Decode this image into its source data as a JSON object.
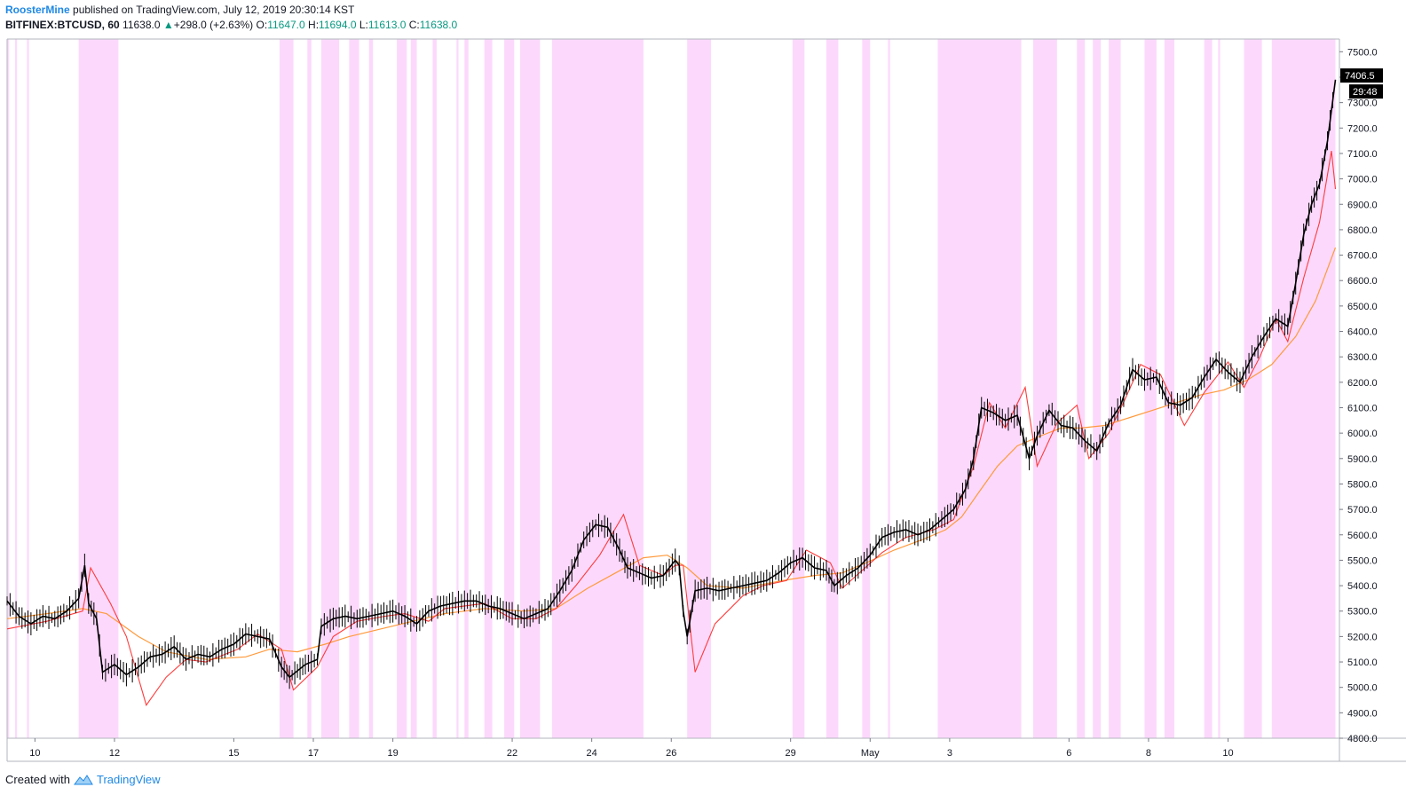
{
  "header": {
    "author": "RoosterMine",
    "published": "published on TradingView.com, July 12, 2019 20:30:14 KST",
    "symbol": "BITFINEX:BTCUSD, 60",
    "last": "11638.0",
    "change": "+298.0 (+2.63%)",
    "o_label": "O:",
    "o_value": "11647.0",
    "h_label": "H:",
    "h_value": "11694.0",
    "l_label": "L:",
    "l_value": "11613.0",
    "c_label": "C:",
    "c_value": "11638.0"
  },
  "price_tag": {
    "value": "7406.5",
    "countdown": "29:48"
  },
  "footer": {
    "created_with": "Created with",
    "brand": "TradingView"
  },
  "colors": {
    "candle": "#000000",
    "ema_fast": "#ff3b3b",
    "ema_slow": "#ff9a3c",
    "band": "#fcd9fc",
    "tag_bg": "#000000"
  },
  "chart_data": {
    "type": "line",
    "title": "",
    "xlabel": "",
    "ylabel": "",
    "ylim": [
      4800,
      7550
    ],
    "yticks": [
      7500,
      7400,
      7300,
      7200,
      7100,
      7000,
      6900,
      6800,
      6700,
      6600,
      6500,
      6400,
      6300,
      6200,
      6100,
      6000,
      5900,
      5800,
      5700,
      5600,
      5500,
      5400,
      5300,
      5200,
      5100,
      5000,
      4900,
      4800
    ],
    "ytick_labels": [
      "7500.0",
      "7400.0",
      "7300.0",
      "7200.0",
      "7100.0",
      "7000.0",
      "6900.0",
      "6800.0",
      "6700.0",
      "6600.0",
      "6500.0",
      "6400.0",
      "6300.0",
      "6200.0",
      "6100.0",
      "6000.0",
      "5900.0",
      "5800.0",
      "5700.0",
      "5600.0",
      "5500.0",
      "5400.0",
      "5300.0",
      "5200.0",
      "5100.0",
      "5000.0",
      "4900.0",
      "4800.0"
    ],
    "xlim": [
      0,
      33.5
    ],
    "xticks": [
      {
        "day": 0.7,
        "label": "10"
      },
      {
        "day": 2.7,
        "label": "12"
      },
      {
        "day": 5.7,
        "label": "15"
      },
      {
        "day": 7.7,
        "label": "17"
      },
      {
        "day": 9.7,
        "label": "19"
      },
      {
        "day": 12.7,
        "label": "22"
      },
      {
        "day": 14.7,
        "label": "24"
      },
      {
        "day": 16.7,
        "label": "26"
      },
      {
        "day": 19.7,
        "label": "29"
      },
      {
        "day": 21.7,
        "label": "May"
      },
      {
        "day": 23.7,
        "label": "3"
      },
      {
        "day": 26.7,
        "label": "6"
      },
      {
        "day": 28.7,
        "label": "8"
      },
      {
        "day": 30.7,
        "label": "10"
      }
    ],
    "price_series": {
      "name": "BITFINEX:BTCUSD",
      "points": [
        [
          0.0,
          5340
        ],
        [
          0.3,
          5280
        ],
        [
          0.6,
          5250
        ],
        [
          0.9,
          5280
        ],
        [
          1.2,
          5270
        ],
        [
          1.5,
          5300
        ],
        [
          1.8,
          5350
        ],
        [
          1.95,
          5480
        ],
        [
          2.05,
          5330
        ],
        [
          2.25,
          5270
        ],
        [
          2.4,
          5060
        ],
        [
          2.7,
          5090
        ],
        [
          3.0,
          5050
        ],
        [
          3.3,
          5080
        ],
        [
          3.6,
          5120
        ],
        [
          3.9,
          5130
        ],
        [
          4.2,
          5160
        ],
        [
          4.5,
          5110
        ],
        [
          4.8,
          5130
        ],
        [
          5.1,
          5120
        ],
        [
          5.4,
          5150
        ],
        [
          5.7,
          5170
        ],
        [
          6.0,
          5210
        ],
        [
          6.3,
          5200
        ],
        [
          6.6,
          5190
        ],
        [
          6.9,
          5080
        ],
        [
          7.1,
          5040
        ],
        [
          7.5,
          5090
        ],
        [
          7.8,
          5110
        ],
        [
          7.9,
          5240
        ],
        [
          8.2,
          5270
        ],
        [
          8.5,
          5280
        ],
        [
          8.8,
          5270
        ],
        [
          9.1,
          5280
        ],
        [
          9.4,
          5290
        ],
        [
          9.7,
          5300
        ],
        [
          10.0,
          5280
        ],
        [
          10.3,
          5250
        ],
        [
          10.6,
          5300
        ],
        [
          10.9,
          5320
        ],
        [
          11.2,
          5330
        ],
        [
          11.5,
          5340
        ],
        [
          11.8,
          5340
        ],
        [
          12.1,
          5320
        ],
        [
          12.4,
          5310
        ],
        [
          12.7,
          5290
        ],
        [
          13.0,
          5270
        ],
        [
          13.3,
          5290
        ],
        [
          13.6,
          5310
        ],
        [
          13.9,
          5380
        ],
        [
          14.2,
          5460
        ],
        [
          14.5,
          5580
        ],
        [
          14.8,
          5640
        ],
        [
          15.1,
          5630
        ],
        [
          15.4,
          5540
        ],
        [
          15.6,
          5470
        ],
        [
          15.9,
          5450
        ],
        [
          16.2,
          5430
        ],
        [
          16.5,
          5440
        ],
        [
          16.8,
          5500
        ],
        [
          16.9,
          5480
        ],
        [
          17.0,
          5300
        ],
        [
          17.1,
          5200
        ],
        [
          17.3,
          5380
        ],
        [
          17.6,
          5390
        ],
        [
          17.9,
          5380
        ],
        [
          18.2,
          5390
        ],
        [
          18.5,
          5400
        ],
        [
          18.8,
          5410
        ],
        [
          19.1,
          5420
        ],
        [
          19.4,
          5450
        ],
        [
          19.7,
          5490
        ],
        [
          20.0,
          5510
        ],
        [
          20.3,
          5470
        ],
        [
          20.6,
          5460
        ],
        [
          20.8,
          5400
        ],
        [
          21.1,
          5440
        ],
        [
          21.4,
          5470
        ],
        [
          21.7,
          5520
        ],
        [
          22.0,
          5590
        ],
        [
          22.3,
          5610
        ],
        [
          22.6,
          5620
        ],
        [
          22.9,
          5600
        ],
        [
          23.2,
          5620
        ],
        [
          23.5,
          5660
        ],
        [
          23.8,
          5700
        ],
        [
          24.1,
          5780
        ],
        [
          24.3,
          5900
        ],
        [
          24.5,
          6100
        ],
        [
          24.8,
          6080
        ],
        [
          25.1,
          6050
        ],
        [
          25.4,
          6070
        ],
        [
          25.7,
          5900
        ],
        [
          25.9,
          5990
        ],
        [
          26.2,
          6090
        ],
        [
          26.5,
          6030
        ],
        [
          26.8,
          6020
        ],
        [
          27.1,
          5970
        ],
        [
          27.4,
          5930
        ],
        [
          27.7,
          6040
        ],
        [
          28.0,
          6110
        ],
        [
          28.3,
          6250
        ],
        [
          28.6,
          6210
        ],
        [
          28.9,
          6220
        ],
        [
          29.2,
          6120
        ],
        [
          29.5,
          6110
        ],
        [
          29.8,
          6140
        ],
        [
          30.1,
          6220
        ],
        [
          30.4,
          6290
        ],
        [
          30.7,
          6240
        ],
        [
          31.0,
          6200
        ],
        [
          31.3,
          6300
        ],
        [
          31.6,
          6380
        ],
        [
          31.9,
          6450
        ],
        [
          32.2,
          6420
        ],
        [
          32.4,
          6590
        ],
        [
          32.6,
          6780
        ],
        [
          32.8,
          6900
        ],
        [
          33.0,
          6980
        ],
        [
          33.2,
          7150
        ],
        [
          33.4,
          7390
        ]
      ]
    },
    "ema_fast": {
      "points": [
        [
          0.0,
          5230
        ],
        [
          1.0,
          5260
        ],
        [
          1.9,
          5300
        ],
        [
          2.1,
          5470
        ],
        [
          2.6,
          5330
        ],
        [
          3.0,
          5200
        ],
        [
          3.5,
          4930
        ],
        [
          4.0,
          5040
        ],
        [
          4.5,
          5110
        ],
        [
          5.0,
          5100
        ],
        [
          5.8,
          5150
        ],
        [
          6.3,
          5210
        ],
        [
          6.9,
          5150
        ],
        [
          7.2,
          4990
        ],
        [
          7.8,
          5080
        ],
        [
          8.2,
          5200
        ],
        [
          8.8,
          5260
        ],
        [
          9.5,
          5280
        ],
        [
          10.0,
          5290
        ],
        [
          10.6,
          5260
        ],
        [
          11.0,
          5310
        ],
        [
          12.0,
          5330
        ],
        [
          12.7,
          5270
        ],
        [
          13.3,
          5270
        ],
        [
          13.8,
          5310
        ],
        [
          14.3,
          5400
        ],
        [
          14.9,
          5520
        ],
        [
          15.5,
          5680
        ],
        [
          15.9,
          5480
        ],
        [
          16.5,
          5440
        ],
        [
          16.8,
          5480
        ],
        [
          17.0,
          5480
        ],
        [
          17.3,
          5060
        ],
        [
          17.8,
          5250
        ],
        [
          18.5,
          5360
        ],
        [
          19.0,
          5400
        ],
        [
          19.6,
          5420
        ],
        [
          20.1,
          5540
        ],
        [
          20.7,
          5490
        ],
        [
          21.0,
          5390
        ],
        [
          21.5,
          5460
        ],
        [
          22.0,
          5530
        ],
        [
          22.6,
          5590
        ],
        [
          23.3,
          5620
        ],
        [
          23.8,
          5660
        ],
        [
          24.3,
          5870
        ],
        [
          24.7,
          6120
        ],
        [
          25.1,
          6020
        ],
        [
          25.6,
          6180
        ],
        [
          25.9,
          5870
        ],
        [
          26.4,
          6040
        ],
        [
          26.9,
          6110
        ],
        [
          27.2,
          5900
        ],
        [
          27.7,
          6000
        ],
        [
          28.1,
          6130
        ],
        [
          28.5,
          6270
        ],
        [
          29.0,
          6230
        ],
        [
          29.6,
          6030
        ],
        [
          30.1,
          6160
        ],
        [
          30.7,
          6280
        ],
        [
          31.1,
          6180
        ],
        [
          31.5,
          6300
        ],
        [
          31.9,
          6450
        ],
        [
          32.2,
          6360
        ],
        [
          32.6,
          6610
        ],
        [
          33.0,
          6830
        ],
        [
          33.3,
          7110
        ],
        [
          33.4,
          6960
        ]
      ]
    },
    "ema_slow": {
      "points": [
        [
          0.0,
          5270
        ],
        [
          1.0,
          5290
        ],
        [
          1.9,
          5310
        ],
        [
          2.5,
          5290
        ],
        [
          3.3,
          5200
        ],
        [
          4.0,
          5140
        ],
        [
          5.0,
          5110
        ],
        [
          6.0,
          5120
        ],
        [
          6.6,
          5150
        ],
        [
          7.3,
          5140
        ],
        [
          8.0,
          5170
        ],
        [
          8.6,
          5200
        ],
        [
          9.4,
          5230
        ],
        [
          10.2,
          5260
        ],
        [
          11.0,
          5290
        ],
        [
          12.0,
          5310
        ],
        [
          13.0,
          5300
        ],
        [
          13.8,
          5310
        ],
        [
          14.6,
          5390
        ],
        [
          15.3,
          5450
        ],
        [
          16.0,
          5510
        ],
        [
          16.6,
          5520
        ],
        [
          17.1,
          5470
        ],
        [
          17.6,
          5400
        ],
        [
          18.5,
          5390
        ],
        [
          19.5,
          5420
        ],
        [
          20.3,
          5440
        ],
        [
          21.0,
          5450
        ],
        [
          21.6,
          5490
        ],
        [
          22.3,
          5540
        ],
        [
          23.0,
          5580
        ],
        [
          23.6,
          5620
        ],
        [
          24.0,
          5670
        ],
        [
          24.4,
          5760
        ],
        [
          24.9,
          5870
        ],
        [
          25.4,
          5950
        ],
        [
          26.0,
          5990
        ],
        [
          26.5,
          6020
        ],
        [
          27.0,
          6020
        ],
        [
          27.6,
          6030
        ],
        [
          28.2,
          6060
        ],
        [
          28.8,
          6090
        ],
        [
          29.4,
          6120
        ],
        [
          30.0,
          6150
        ],
        [
          30.6,
          6170
        ],
        [
          31.2,
          6210
        ],
        [
          31.8,
          6270
        ],
        [
          32.4,
          6380
        ],
        [
          32.9,
          6520
        ],
        [
          33.4,
          6730
        ]
      ]
    },
    "bands": [
      [
        0.0,
        0.05
      ],
      [
        0.2,
        0.25
      ],
      [
        0.5,
        0.55
      ],
      [
        1.8,
        2.8
      ],
      [
        6.85,
        7.2
      ],
      [
        7.55,
        7.65
      ],
      [
        7.9,
        8.35
      ],
      [
        8.6,
        8.85
      ],
      [
        9.1,
        9.2
      ],
      [
        9.8,
        10.05
      ],
      [
        10.15,
        10.3
      ],
      [
        10.7,
        10.8
      ],
      [
        11.3,
        11.35
      ],
      [
        11.5,
        11.6
      ],
      [
        12.0,
        12.2
      ],
      [
        12.5,
        12.75
      ],
      [
        12.9,
        13.4
      ],
      [
        13.7,
        16.0
      ],
      [
        17.1,
        17.7
      ],
      [
        19.75,
        20.05
      ],
      [
        20.6,
        20.9
      ],
      [
        21.5,
        21.7
      ],
      [
        22.15,
        22.2
      ],
      [
        23.4,
        25.5
      ],
      [
        25.8,
        26.4
      ],
      [
        26.9,
        27.1
      ],
      [
        27.3,
        27.5
      ],
      [
        27.7,
        28.0
      ],
      [
        28.6,
        28.9
      ],
      [
        29.1,
        29.35
      ],
      [
        30.1,
        30.3
      ],
      [
        30.45,
        30.5
      ],
      [
        31.1,
        31.55
      ],
      [
        31.8,
        33.4
      ]
    ],
    "grid": false,
    "legend": "none"
  }
}
